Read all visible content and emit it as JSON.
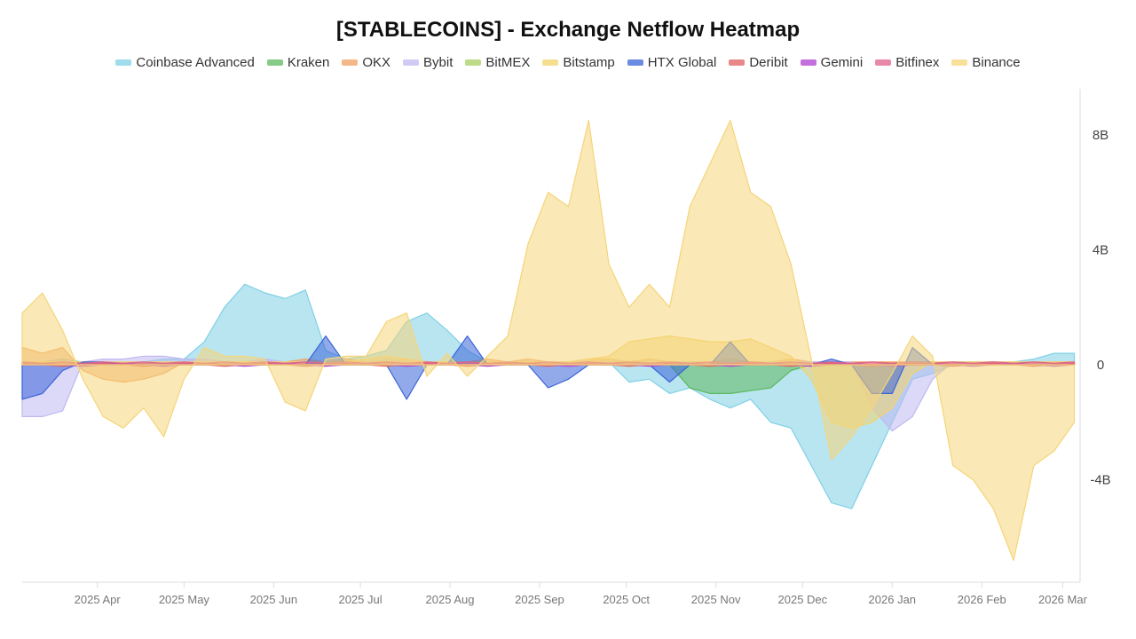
{
  "chart_data": {
    "type": "area",
    "title": "[STABLECOINS] - Exchange Netflow Heatmap",
    "xlabel": "",
    "ylabel": "",
    "ylim": [
      -7.56,
      9.6
    ],
    "y_unit": "B",
    "yticks": [
      {
        "value": 8,
        "label": "8B"
      },
      {
        "value": 4,
        "label": "4B"
      },
      {
        "value": 0,
        "label": "0"
      },
      {
        "value": -4,
        "label": "-4B"
      }
    ],
    "xlim": [
      "2025-03-06",
      "2026-03-07"
    ],
    "xticks": [
      {
        "date": "2025-04-01",
        "label": "2025 Apr"
      },
      {
        "date": "2025-05-01",
        "label": "2025 May"
      },
      {
        "date": "2025-06-01",
        "label": "2025 Jun"
      },
      {
        "date": "2025-07-01",
        "label": "2025 Jul"
      },
      {
        "date": "2025-08-01",
        "label": "2025 Aug"
      },
      {
        "date": "2025-09-01",
        "label": "2025 Sep"
      },
      {
        "date": "2025-10-01",
        "label": "2025 Oct"
      },
      {
        "date": "2025-11-01",
        "label": "2025 Nov"
      },
      {
        "date": "2025-12-01",
        "label": "2025 Dec"
      },
      {
        "date": "2026-01-01",
        "label": "2026 Jan"
      },
      {
        "date": "2026-02-01",
        "label": "2026 Feb"
      },
      {
        "date": "2026-03-01",
        "label": "2026 Mar"
      }
    ],
    "x_start": "2025-03-06",
    "x_step_days": 7,
    "legend_position": "top-center",
    "grid": false,
    "series": [
      {
        "name": "Coinbase Advanced",
        "color": "#7fd0e6",
        "values": [
          0.1,
          0.1,
          0.2,
          0.1,
          0.1,
          0.1,
          0.1,
          0.2,
          0.2,
          0.8,
          2.0,
          2.8,
          2.5,
          2.3,
          2.6,
          0.5,
          0.2,
          0.3,
          0.5,
          1.5,
          1.8,
          1.2,
          0.5,
          0.1,
          0.1,
          0.1,
          0.1,
          0.1,
          0.1,
          0.1,
          -0.6,
          -0.5,
          -1.0,
          -0.8,
          -1.2,
          -1.5,
          -1.2,
          -2.0,
          -2.2,
          -3.5,
          -4.8,
          -5.0,
          -3.5,
          -2.0,
          -0.5,
          -0.3,
          0.0,
          0.1,
          0.1,
          0.1,
          0.2,
          0.4,
          0.4
        ]
      },
      {
        "name": "Kraken",
        "color": "#5cb85c",
        "values": [
          0,
          0.05,
          0,
          0.05,
          0,
          0,
          0.05,
          0,
          0,
          0.05,
          0,
          0,
          0.05,
          0,
          0,
          0.05,
          0,
          0,
          0.05,
          0,
          0,
          0.05,
          0,
          0,
          0.05,
          0,
          0,
          0.05,
          0,
          0,
          0.05,
          0,
          0,
          -0.8,
          -1.0,
          -1.0,
          -0.9,
          -0.8,
          -0.2,
          0,
          0.05,
          0,
          0,
          0.05,
          0,
          0,
          0.05,
          0,
          0,
          0.05,
          0,
          0,
          0
        ]
      },
      {
        "name": "OKX",
        "color": "#f0a060",
        "values": [
          0.6,
          0.4,
          0.6,
          -0.2,
          -0.5,
          -0.6,
          -0.5,
          -0.3,
          0.1,
          0.1,
          0.1,
          0,
          0.1,
          0.1,
          0.2,
          0.1,
          0.2,
          0.1,
          0.1,
          0.2,
          0.1,
          0.1,
          0.1,
          0.2,
          0.1,
          0.2,
          0.1,
          0.1,
          0.2,
          0.2,
          0.1,
          0.2,
          0.1,
          0.1,
          0.1,
          0.2,
          0.1,
          0.1,
          0.2,
          0.1,
          0.1,
          0.1,
          0.1,
          0.1,
          0.1,
          0.1,
          0.1,
          0.1,
          0.1,
          0.1,
          0.1,
          0.1,
          0.1
        ]
      },
      {
        "name": "Bybit",
        "color": "#c0b8f0",
        "values": [
          -1.8,
          -1.8,
          -1.6,
          0.1,
          0.2,
          0.2,
          0.3,
          0.3,
          0.2,
          0.2,
          0.1,
          0.1,
          0.2,
          0.1,
          0.1,
          0.1,
          0.1,
          0.1,
          0.2,
          0.1,
          0.1,
          0.1,
          0.1,
          0.1,
          0.1,
          0.1,
          0.1,
          0.1,
          0.1,
          0.1,
          0.1,
          0.1,
          0.1,
          0.1,
          0.1,
          0.1,
          0.1,
          0.1,
          0.1,
          0.1,
          0.1,
          0.1,
          -1.5,
          -2.3,
          -1.8,
          -0.5,
          0.1,
          0.1,
          0.1,
          0.1,
          0.1,
          0.1,
          0.1
        ]
      },
      {
        "name": "BitMEX",
        "color": "#a8d060",
        "values": [
          0,
          0,
          0,
          0,
          0,
          0,
          0,
          0,
          0,
          0,
          0,
          0,
          0,
          0,
          0,
          0,
          0,
          0,
          0,
          0,
          0,
          0,
          0,
          0,
          0,
          0,
          0,
          0,
          0,
          0,
          0,
          0,
          0,
          0,
          0,
          0,
          0,
          0,
          0,
          0,
          0,
          0,
          0,
          0,
          0,
          0,
          0,
          0,
          0,
          0,
          0,
          0,
          0
        ]
      },
      {
        "name": "Bitstamp",
        "color": "#f3d36b",
        "values": [
          0.1,
          0.1,
          0.1,
          0.1,
          0.1,
          0.1,
          0.1,
          0.1,
          0.1,
          0.1,
          0.1,
          0.1,
          0.1,
          0.1,
          0.1,
          0.1,
          0.1,
          0.2,
          0.3,
          0.2,
          0.1,
          0.1,
          0.1,
          0.1,
          0.1,
          0.1,
          0.1,
          0.1,
          0.2,
          0.3,
          0.8,
          0.9,
          1.0,
          0.9,
          0.8,
          0.8,
          0.9,
          0.6,
          0.3,
          -0.5,
          -2.0,
          -2.2,
          -2.0,
          -1.5,
          -0.3,
          0.1,
          0.1,
          0.1,
          0.1,
          0.1,
          0.1,
          0.1,
          0.1
        ]
      },
      {
        "name": "HTX Global",
        "color": "#3a64d8",
        "values": [
          -1.2,
          -1.0,
          -0.2,
          0.1,
          0.1,
          0,
          0,
          0,
          0,
          0,
          0,
          0,
          0,
          0,
          0,
          1.0,
          0,
          0,
          0,
          -1.2,
          0,
          0,
          1.0,
          0,
          0,
          0,
          -0.8,
          -0.5,
          0,
          0,
          0,
          0,
          -0.6,
          0,
          0,
          0.8,
          0,
          0,
          0,
          0,
          0.2,
          0,
          -1.0,
          -1.0,
          0.6,
          0,
          0,
          0,
          0,
          0,
          0,
          0,
          0
        ]
      },
      {
        "name": "Deribit",
        "color": "#e06060",
        "values": [
          0.05,
          0,
          -0.05,
          0,
          0.05,
          0,
          -0.05,
          0,
          0.05,
          0,
          -0.05,
          0,
          0.05,
          0,
          -0.05,
          0,
          0.05,
          0,
          -0.05,
          0,
          0.05,
          0,
          -0.05,
          0,
          0.05,
          0,
          -0.05,
          0,
          0.05,
          0,
          -0.05,
          0,
          0.05,
          0,
          -0.05,
          0,
          0.05,
          0,
          -0.05,
          0,
          0.05,
          0,
          -0.05,
          0,
          0.05,
          0,
          -0.05,
          0,
          0.05,
          0,
          -0.05,
          0,
          0.05
        ]
      },
      {
        "name": "Gemini",
        "color": "#b040d0",
        "values": [
          0,
          0.05,
          0,
          -0.05,
          0,
          0.05,
          0,
          -0.05,
          0,
          0.05,
          0,
          -0.05,
          0,
          0.05,
          0,
          -0.05,
          0,
          0.05,
          0,
          -0.05,
          0,
          0.05,
          0,
          -0.05,
          0,
          0.05,
          0,
          -0.05,
          0,
          0.05,
          0,
          -0.05,
          0,
          0.05,
          0,
          -0.05,
          0,
          0.05,
          0,
          -0.05,
          0,
          0.05,
          0,
          -0.05,
          0,
          0.05,
          0,
          -0.05,
          0,
          0.05,
          0,
          -0.05,
          0
        ]
      },
      {
        "name": "Bitfinex",
        "color": "#e0608a",
        "values": [
          0.1,
          0.05,
          0.1,
          0.05,
          0.1,
          0.05,
          0.1,
          0.05,
          0.1,
          0.05,
          0.1,
          0.05,
          0.1,
          0.05,
          0.1,
          0.05,
          0.1,
          0.05,
          0.1,
          0.05,
          0.1,
          0.05,
          0.1,
          0.05,
          0.1,
          0.05,
          0.1,
          0.05,
          0.1,
          0.05,
          0.1,
          0.05,
          0.1,
          0.05,
          0.1,
          0.05,
          0.1,
          0.05,
          0.1,
          0.05,
          0.1,
          0.05,
          0.1,
          0.05,
          0.1,
          0.05,
          0.1,
          0.05,
          0.1,
          0.05,
          0.1,
          0.05,
          0.1
        ]
      },
      {
        "name": "Binance",
        "color": "#f5d57a",
        "values": [
          1.8,
          2.5,
          1.2,
          -0.5,
          -1.8,
          -2.2,
          -1.5,
          -2.5,
          -0.5,
          0.6,
          0.3,
          0.3,
          0.2,
          -1.3,
          -1.6,
          0.2,
          0.3,
          0.3,
          1.5,
          1.8,
          -0.4,
          0.4,
          -0.4,
          0.3,
          1.0,
          4.2,
          6.0,
          5.5,
          8.5,
          3.5,
          2.0,
          2.8,
          2.0,
          5.5,
          7.0,
          8.5,
          6.0,
          5.5,
          3.5,
          0.2,
          -3.3,
          -2.5,
          -1.5,
          -0.3,
          1.0,
          0.3,
          -3.5,
          -4.0,
          -5.0,
          -6.8,
          -3.5,
          -3.0,
          -2.0
        ]
      }
    ]
  }
}
